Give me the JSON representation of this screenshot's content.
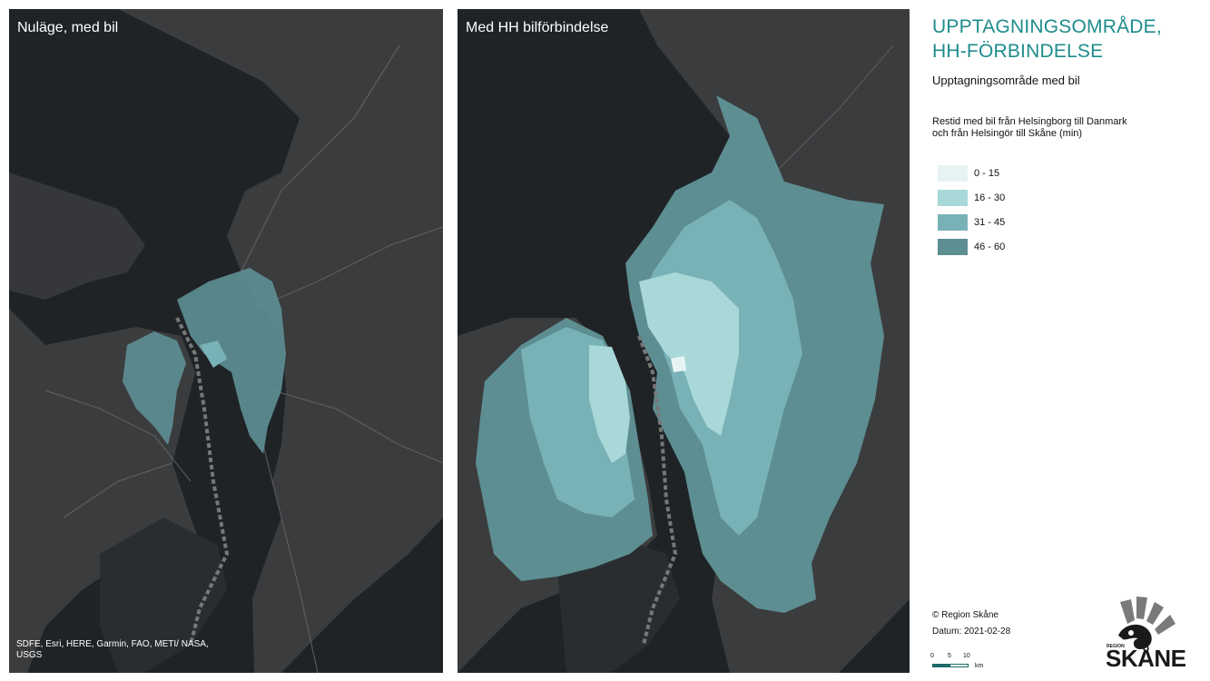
{
  "maps": {
    "left": {
      "title": "Nuläge, med bil",
      "attribution": "SDFE, Esri, HERE, Garmin, FAO, METI/ NASA, USGS"
    },
    "right": {
      "title": "Med HH bilförbindelse"
    }
  },
  "legend": {
    "title": "UPPTAGNINGSOMRÅDE, HH-FÖRBINDELSE",
    "subtitle": "Upptagningsområde med bil",
    "description": "Restid med bil från Helsingborg till Danmark och från Helsingör till Skåne (min)",
    "classes": [
      {
        "label": "0 - 15",
        "color": "#e7f3f3"
      },
      {
        "label": "16 - 30",
        "color": "#a9d8d8"
      },
      {
        "label": "31 - 45",
        "color": "#78b2b6"
      },
      {
        "label": "46 - 60",
        "color": "#5d8e92"
      }
    ]
  },
  "footer": {
    "copyright": "© Region Skåne",
    "date": "Datum: 2021-02-28",
    "scale": {
      "labels": [
        "0",
        "5",
        "10"
      ],
      "unit": "km"
    }
  },
  "logo": {
    "region": "REGION",
    "name": "SKÅNE"
  },
  "colors": {
    "accent": "#1e8c8c",
    "water": "#1f2326",
    "land": "#3b3c3e"
  }
}
